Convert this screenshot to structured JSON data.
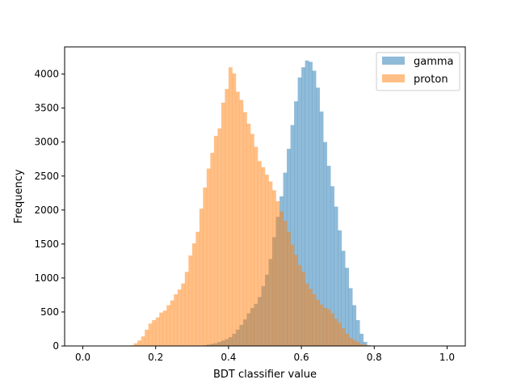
{
  "chart_data": {
    "type": "histogram",
    "title": "",
    "xlabel": "BDT classifier value",
    "ylabel": "Frequency",
    "xlim": [
      -0.05,
      1.05
    ],
    "ylim": [
      0,
      4400
    ],
    "xticks": [
      "0.0",
      "0.2",
      "0.4",
      "0.6",
      "0.8",
      "1.0"
    ],
    "yticks": [
      "0",
      "500",
      "1000",
      "1500",
      "2000",
      "2500",
      "3000",
      "3500",
      "4000"
    ],
    "grid": false,
    "legend_position": "upper right",
    "bin_range": [
      0.0,
      1.0
    ],
    "bin_count": 100,
    "opacity": 0.5,
    "series": [
      {
        "name": "gamma",
        "color": "#1f77b4",
        "counts": [
          0,
          0,
          0,
          0,
          0,
          0,
          0,
          0,
          0,
          0,
          0,
          0,
          0,
          0,
          0,
          0,
          0,
          0,
          0,
          0,
          0,
          0,
          0,
          0,
          0,
          0,
          0,
          0,
          0,
          0,
          0,
          0,
          5,
          10,
          20,
          30,
          40,
          60,
          80,
          100,
          130,
          180,
          240,
          310,
          390,
          480,
          560,
          620,
          720,
          880,
          1050,
          1280,
          1600,
          1900,
          2200,
          2550,
          2900,
          3250,
          3600,
          3950,
          4100,
          4200,
          4180,
          4050,
          3800,
          3450,
          3000,
          2650,
          2350,
          2050,
          1700,
          1400,
          1150,
          850,
          600,
          380,
          180,
          60,
          10,
          0,
          0,
          0,
          0,
          0,
          0,
          0,
          0,
          0,
          0,
          0,
          0,
          0,
          0,
          0,
          0,
          0,
          0,
          0,
          0,
          0
        ]
      },
      {
        "name": "proton",
        "color": "#ff7f0e",
        "counts": [
          0,
          0,
          0,
          0,
          0,
          0,
          0,
          0,
          0,
          0,
          0,
          0,
          0,
          10,
          40,
          80,
          140,
          240,
          330,
          380,
          420,
          490,
          520,
          600,
          670,
          760,
          830,
          920,
          1090,
          1330,
          1510,
          1680,
          2020,
          2330,
          2610,
          2840,
          3090,
          3200,
          3580,
          3780,
          4100,
          4010,
          3740,
          3620,
          3440,
          3270,
          3120,
          2930,
          2720,
          2630,
          2520,
          2420,
          2290,
          2130,
          1980,
          1840,
          1680,
          1490,
          1340,
          1190,
          1090,
          920,
          840,
          760,
          680,
          610,
          560,
          540,
          480,
          400,
          340,
          260,
          180,
          120,
          90,
          60,
          30,
          20,
          10,
          5,
          0,
          0,
          0,
          0,
          0,
          0,
          0,
          0,
          0,
          0,
          0,
          0,
          0,
          0,
          0,
          0,
          0,
          0,
          0,
          0
        ]
      }
    ]
  }
}
